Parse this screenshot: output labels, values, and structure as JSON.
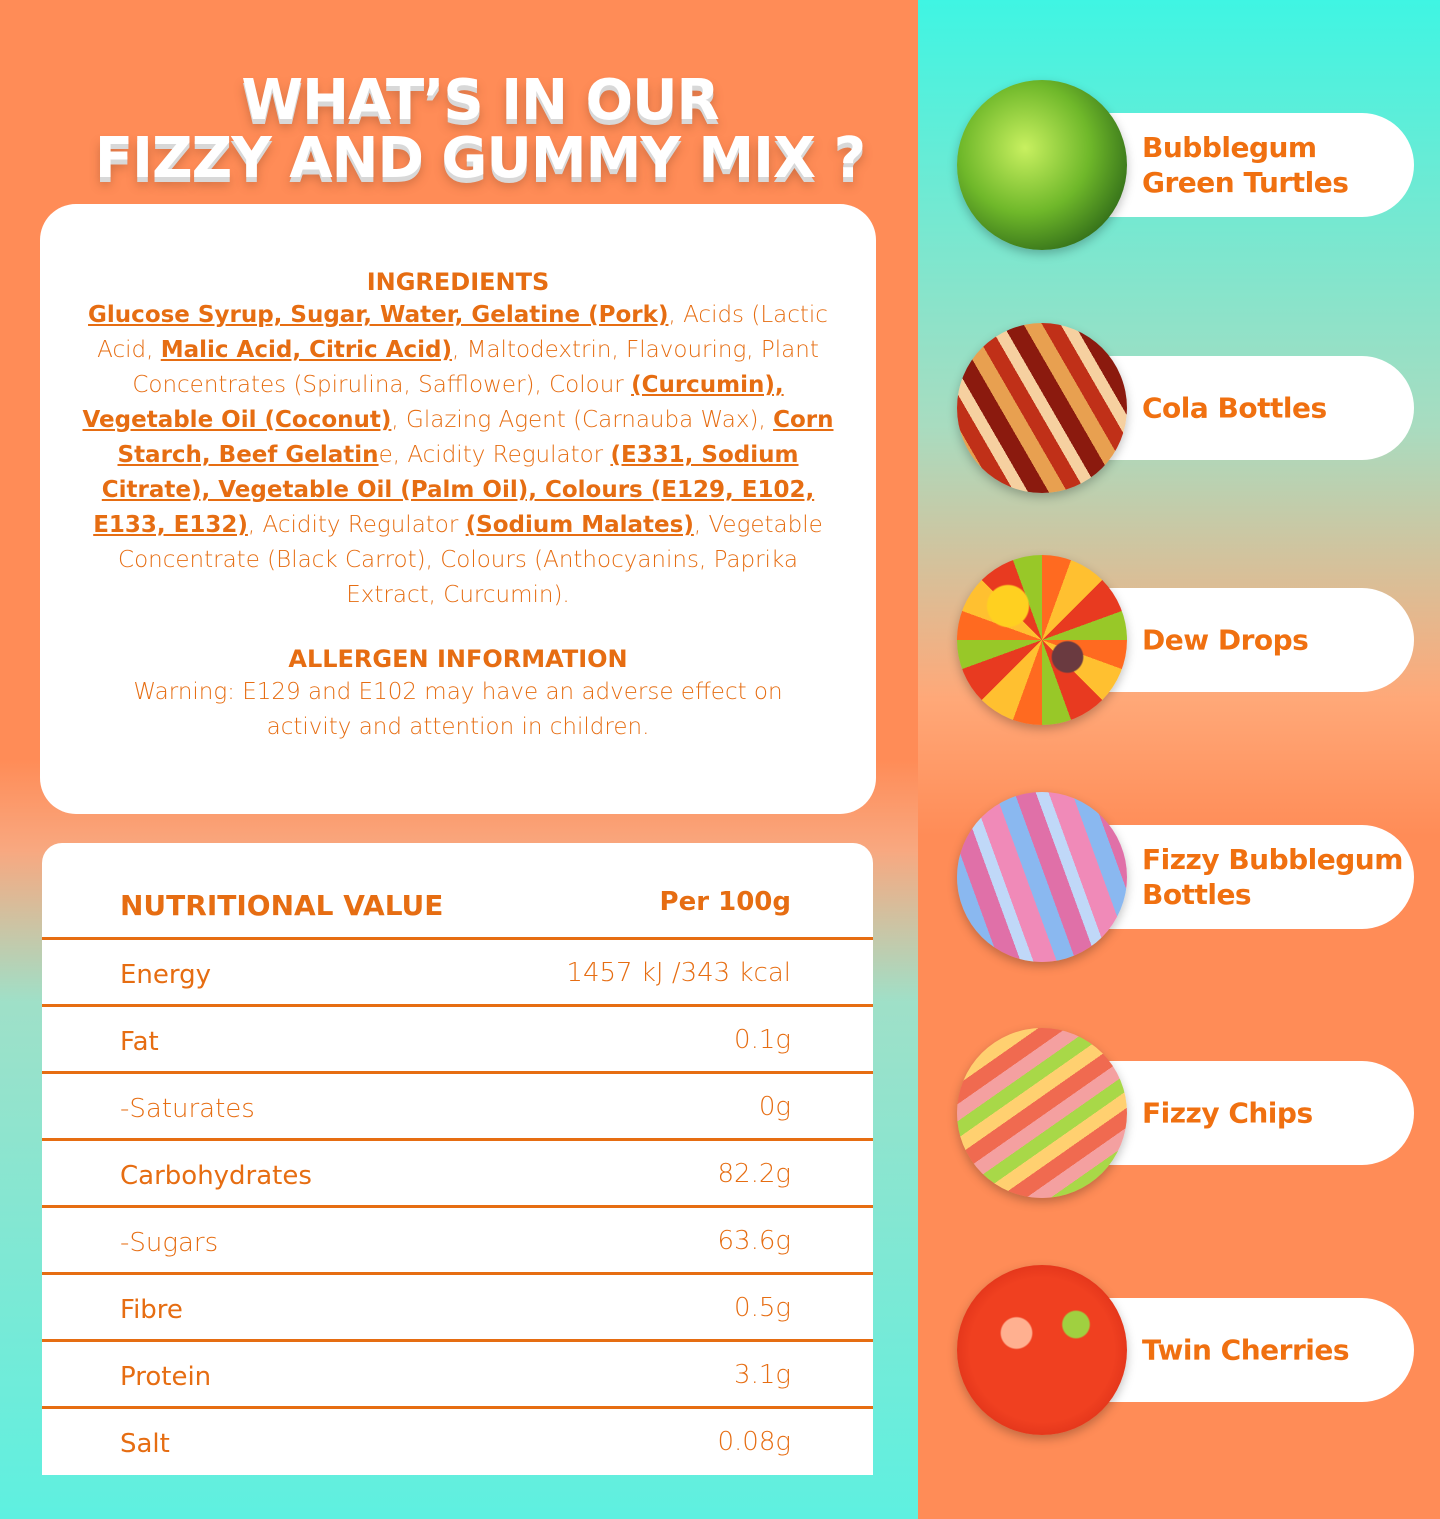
{
  "header": {
    "title_lines": [
      "WHAT’S IN OUR",
      "FIZZY AND GUMMY MIX ?"
    ]
  },
  "ingredients": {
    "heading": "INGREDIENTS",
    "segments": [
      {
        "text": "Glucose Syrup, Sugar, Water, Gelatine (Pork)",
        "underlined": true
      },
      {
        "text": ", Acids (Lactic Acid, ",
        "underlined": false
      },
      {
        "text": "Malic Acid, Citric Acid)",
        "underlined": true
      },
      {
        "text": ", Maltodextrin, Flavouring, Plant Concentrates (Spirulina, Safflower), Colour ",
        "underlined": false
      },
      {
        "text": "(Curcumin), Vegetable Oil (Coconut)",
        "underlined": true
      },
      {
        "text": ", Glazing Agent (Carnauba Wax), ",
        "underlined": false
      },
      {
        "text": "Corn Starch, Beef Gelatin",
        "underlined": true
      },
      {
        "text": "e, Acidity Regulator ",
        "underlined": false
      },
      {
        "text": "(E331, Sodium Citrate), Vegetable Oil (Palm Oil), Colours (E129, E102, E133, E132)",
        "underlined": true
      },
      {
        "text": ", Acidity Regulator ",
        "underlined": false
      },
      {
        "text": "(Sodium Malates)",
        "underlined": true
      },
      {
        "text": ", Vegetable Concentrate (Black Carrot), Colours (Anthocyanins, Paprika Extract, Curcumin).",
        "underlined": false
      }
    ]
  },
  "allergen": {
    "heading": "ALLERGEN INFORMATION",
    "text": "Warning: E129 and E102 may have an adverse effect on activity and attention in children."
  },
  "table": {
    "header": [
      "NUTRITIONAL VALUE",
      "Per 100g"
    ],
    "rows": [
      [
        "Energy",
        "1457 kJ /343 kcal"
      ],
      [
        "Fat",
        "0.1g"
      ],
      [
        "-Saturates",
        "0g"
      ],
      [
        "Carbohydrates",
        "82.2g"
      ],
      [
        "-Sugars",
        "63.6g"
      ],
      [
        "Fibre",
        "0.5g"
      ],
      [
        "Protein",
        "3.1g"
      ],
      [
        "Salt",
        "0.08g"
      ]
    ]
  },
  "products": [
    "Bubblegum Green Turtles",
    "Cola Bottles",
    "Dew Drops",
    "Fizzy Bubblegum Bottles",
    "Fizzy Chips",
    "Twin Cherries"
  ]
}
